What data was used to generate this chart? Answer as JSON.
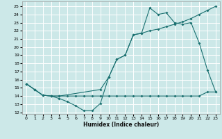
{
  "xlabel": "Humidex (Indice chaleur)",
  "bg_color": "#cce8e8",
  "grid_color": "#ffffff",
  "line_color": "#1a7070",
  "xlim": [
    -0.5,
    23.5
  ],
  "ylim": [
    11.8,
    25.6
  ],
  "yticks": [
    12,
    13,
    14,
    15,
    16,
    17,
    18,
    19,
    20,
    21,
    22,
    23,
    24,
    25
  ],
  "xticks": [
    0,
    1,
    2,
    3,
    4,
    5,
    6,
    7,
    8,
    9,
    10,
    11,
    12,
    13,
    14,
    15,
    16,
    17,
    18,
    19,
    20,
    21,
    22,
    23
  ],
  "line1_x": [
    0,
    1,
    2,
    3,
    4,
    5,
    6,
    7,
    8,
    9,
    10,
    11,
    12,
    13,
    14,
    15,
    16,
    17,
    18,
    19,
    20,
    21,
    22,
    23
  ],
  "line1_y": [
    15.5,
    14.8,
    14.1,
    14.0,
    13.7,
    13.3,
    12.8,
    12.2,
    12.2,
    13.1,
    16.3,
    18.5,
    19.0,
    21.5,
    21.7,
    22.0,
    22.2,
    22.5,
    22.8,
    23.1,
    23.5,
    24.0,
    24.5,
    25.0
  ],
  "line2_x": [
    0,
    1,
    2,
    3,
    4,
    5,
    6,
    7,
    8,
    9,
    10,
    11,
    12,
    13,
    14,
    15,
    16,
    17,
    18,
    19,
    20,
    21,
    22,
    23
  ],
  "line2_y": [
    15.5,
    14.8,
    14.1,
    14.0,
    14.0,
    14.0,
    14.0,
    14.0,
    14.0,
    14.0,
    14.0,
    14.0,
    14.0,
    14.0,
    14.0,
    14.0,
    14.0,
    14.0,
    14.0,
    14.0,
    14.0,
    14.0,
    14.5,
    14.5
  ],
  "line3_x": [
    0,
    1,
    2,
    3,
    4,
    9,
    10,
    11,
    12,
    13,
    14,
    15,
    16,
    17,
    18,
    19,
    20,
    21,
    22,
    23
  ],
  "line3_y": [
    15.5,
    14.8,
    14.1,
    14.0,
    14.0,
    14.8,
    16.3,
    18.5,
    19.0,
    21.5,
    21.7,
    24.8,
    24.0,
    24.2,
    23.0,
    22.8,
    23.0,
    20.5,
    17.2,
    14.5
  ]
}
